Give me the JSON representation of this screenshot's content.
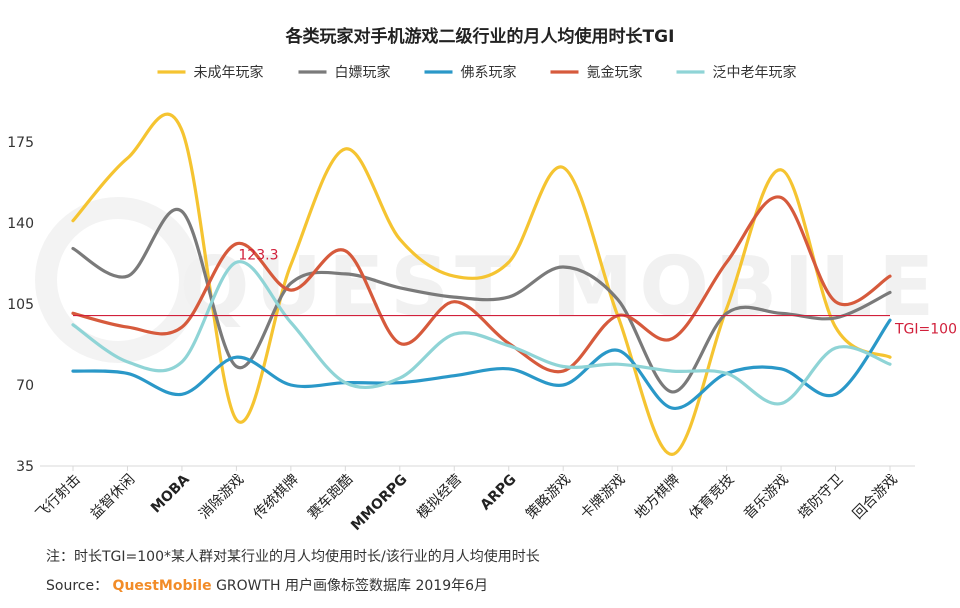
{
  "chart_data": {
    "type": "line",
    "title": "各类玩家对手机游戏二级行业的月人均使用时长TGI",
    "categories": [
      "飞行射击",
      "益智休闲",
      "MOBA",
      "消除游戏",
      "传统棋牌",
      "赛车跑酷",
      "MMORPG",
      "模拟经营",
      "ARPG",
      "策略游戏",
      "卡牌游戏",
      "地方棋牌",
      "体育竞技",
      "音乐游戏",
      "塔防守卫",
      "回合游戏"
    ],
    "series": [
      {
        "name": "未成年玩家",
        "color": "#f5c431",
        "values": [
          141,
          168,
          180,
          55,
          122,
          172,
          133,
          117,
          123,
          164,
          100,
          40,
          103,
          163,
          95,
          82
        ]
      },
      {
        "name": "白嫖玩家",
        "color": "#7a7a7a",
        "values": [
          129,
          117,
          145,
          78,
          114,
          118,
          112,
          108,
          108,
          121,
          107,
          67,
          101,
          101,
          99,
          110
        ]
      },
      {
        "name": "佛系玩家",
        "color": "#2a98c8",
        "values": [
          76,
          75,
          66,
          82,
          70,
          71,
          71,
          74,
          77,
          70,
          85,
          60,
          75,
          77,
          66,
          98
        ]
      },
      {
        "name": "氪金玩家",
        "color": "#d65a3c",
        "values": [
          101,
          95,
          95,
          131,
          111,
          128,
          88,
          106,
          88,
          76,
          100,
          90,
          123,
          151,
          106,
          117
        ]
      },
      {
        "name": "泛中老年玩家",
        "color": "#8fd4d6",
        "values": [
          96,
          80,
          80,
          123,
          97,
          71,
          73,
          92,
          87,
          78,
          79,
          76,
          75,
          62,
          86,
          79
        ]
      }
    ],
    "yticks": [
      35,
      70,
      105,
      140,
      175
    ],
    "ylim": [
      35,
      190
    ],
    "reference_line": {
      "value": 100,
      "label": "TGI=100",
      "color": "#d1203b"
    },
    "annotation": {
      "text": "123.3",
      "value": 123.3,
      "category_index": 3,
      "color": "#d1203b"
    },
    "legend_position": "top-center",
    "grid": false
  },
  "watermark": "QUEST MOBILE",
  "footer": {
    "note": "注：时长TGI=100*某人群对某行业的月人均使用时长/该行业的月人均使用时长",
    "source_label": "Source：",
    "source_brand": "QuestMobile",
    "source_text": "GROWTH 用户画像标签数据库 2019年6月"
  }
}
